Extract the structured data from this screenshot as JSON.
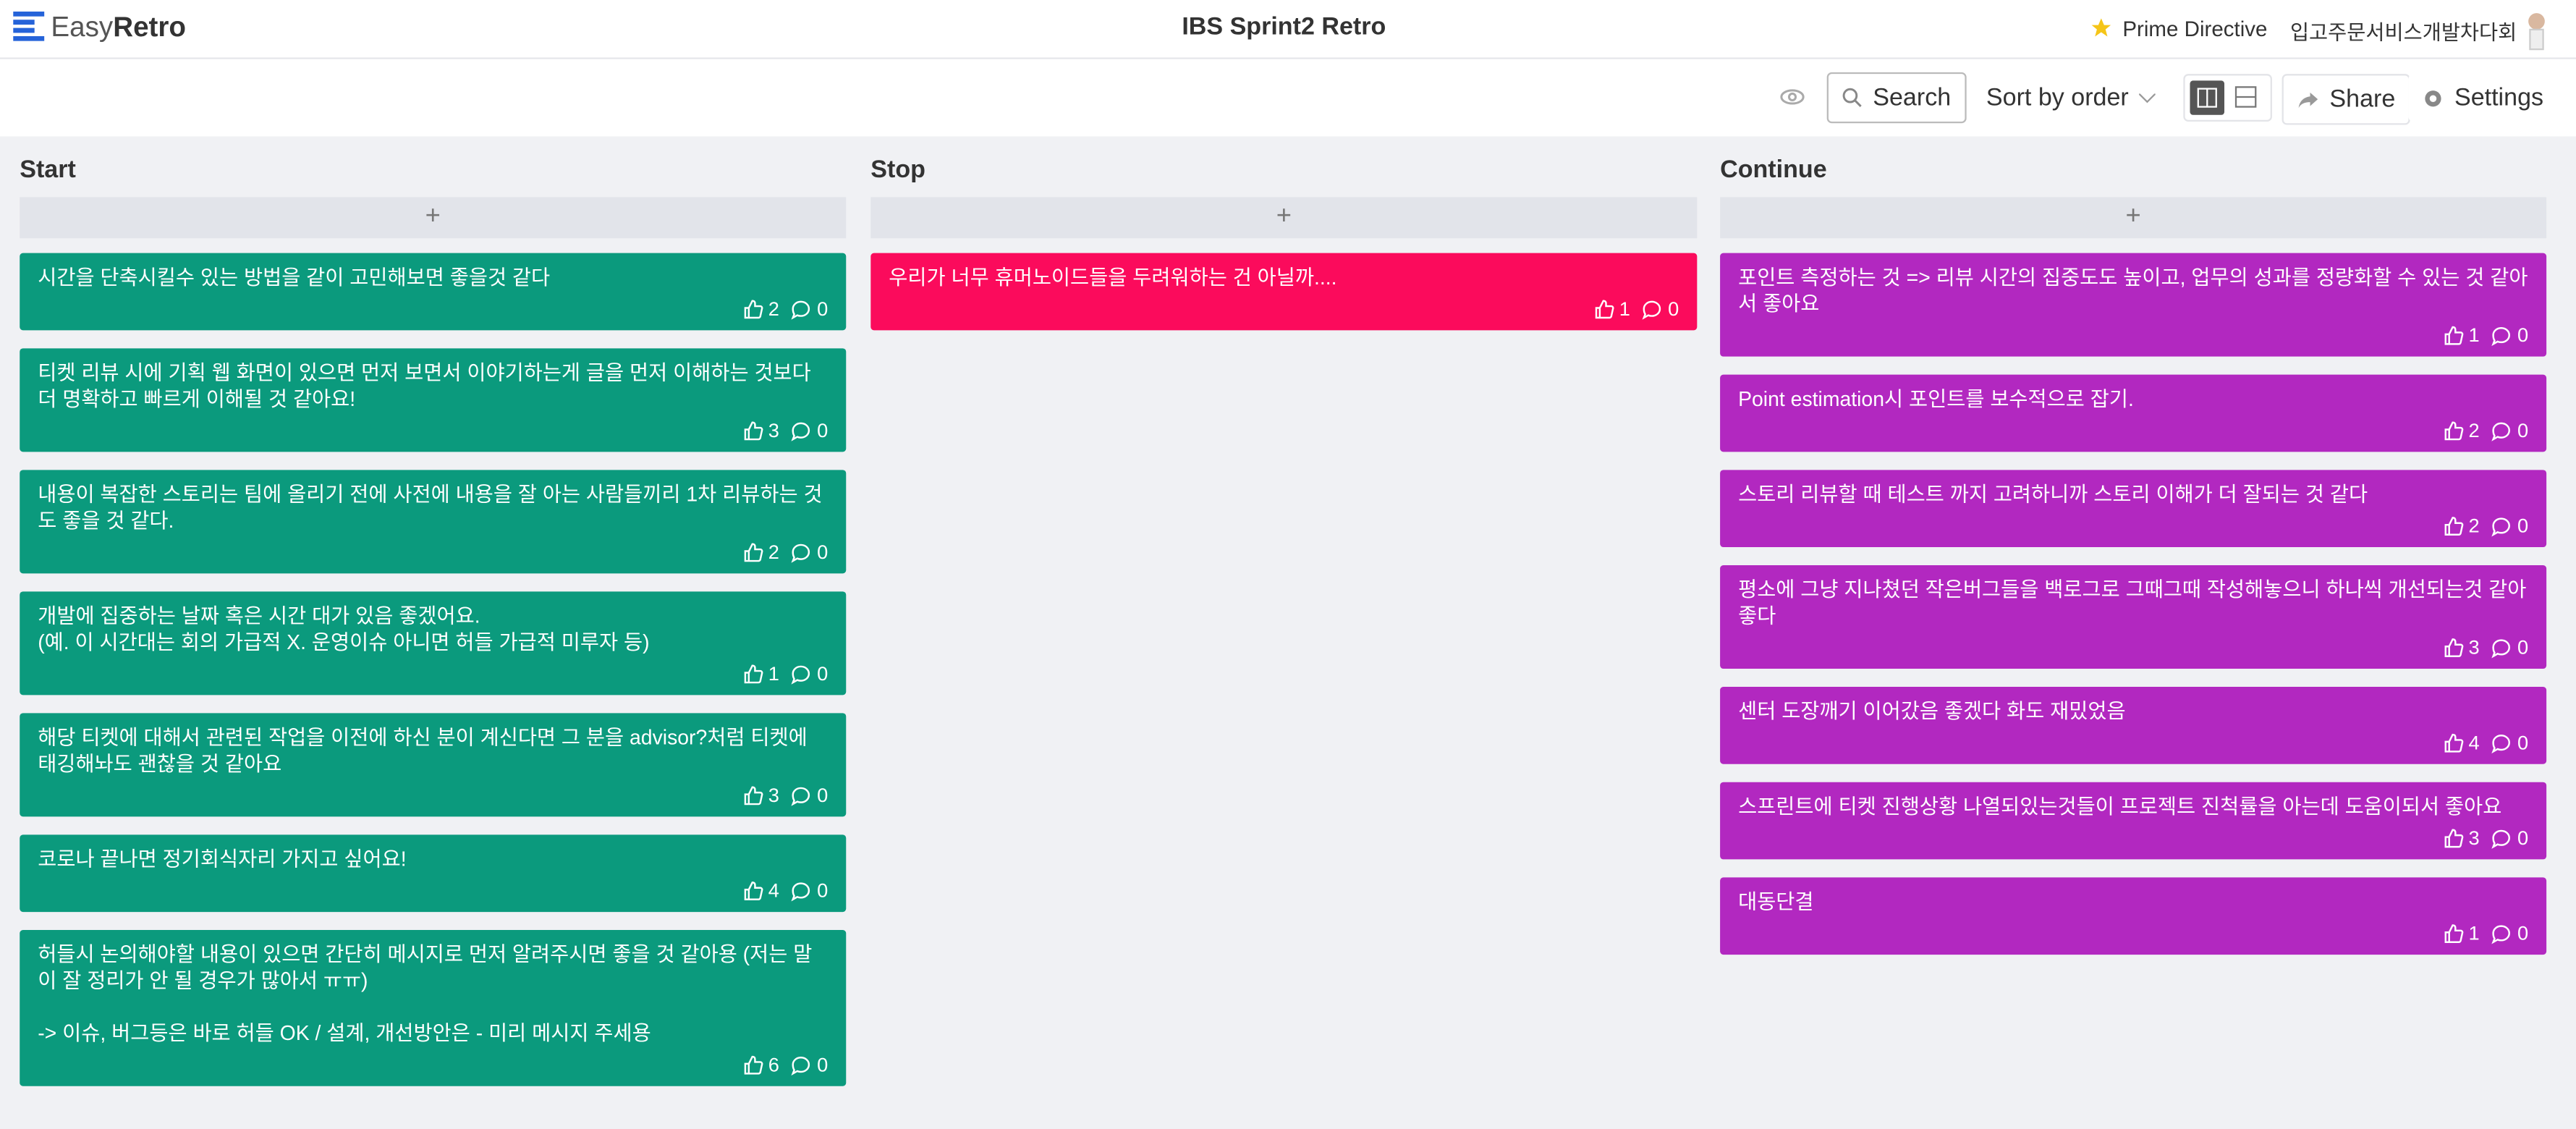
{
  "header": {
    "logo_easy": "Easy",
    "logo_retro": "Retro",
    "title": "IBS Sprint2 Retro",
    "prime_directive": "Prime Directive",
    "team": "입고주문서비스개발차다회"
  },
  "toolbar": {
    "search": "Search",
    "sort": "Sort by order",
    "share": "Share",
    "settings": "Settings"
  },
  "columns": [
    {
      "title": "Start",
      "color": "#0b9a7d",
      "cards": [
        {
          "text": "시간을 단축시킬수 있는 방법을 같이 고민해보면 좋을것 같다",
          "likes": "2",
          "comments": "0"
        },
        {
          "text": "티켓 리뷰 시에 기획 웹 화면이 있으면 먼저 보면서 이야기하는게 글을 먼저 이해하는 것보다 더 명확하고 빠르게 이해될 것 같아요!",
          "likes": "3",
          "comments": "0"
        },
        {
          "text": "내용이 복잡한 스토리는 팀에 올리기 전에 사전에 내용을 잘 아는 사람들끼리 1차 리뷰하는 것도 좋을 것 같다.",
          "likes": "2",
          "comments": "0"
        },
        {
          "text": "개발에 집중하는 날짜 혹은 시간 대가 있음 좋겠어요.\n(예. 이 시간대는 회의 가급적 X. 운영이슈 아니면 허들 가급적 미루자 등)",
          "likes": "1",
          "comments": "0"
        },
        {
          "text": "해당 티켓에 대해서 관련된 작업을 이전에 하신 분이 계신다면 그 분을 advisor?처럼 티켓에 태깅해놔도 괜찮을 것 같아요",
          "likes": "3",
          "comments": "0"
        },
        {
          "text": "코로나 끝나면 정기회식자리 가지고 싶어요!",
          "likes": "4",
          "comments": "0"
        },
        {
          "text": "허들시 논의해야할 내용이 있으면 간단히 메시지로 먼저 알려주시면 좋을 것 같아용 (저는 말이 잘 정리가 안 될 경우가 많아서 ㅠㅠ)\n\n-> 이슈, 버그등은 바로 허들 OK / 설계, 개선방안은 - 미리 메시지 주세용",
          "likes": "6",
          "comments": "0"
        }
      ]
    },
    {
      "title": "Stop",
      "color": "#fb0b5c",
      "cards": [
        {
          "text": "우리가 너무 휴머노이드들을 두려워하는 건 아닐까....",
          "likes": "1",
          "comments": "0"
        }
      ]
    },
    {
      "title": "Continue",
      "color": "#b228c0",
      "cards": [
        {
          "text": "포인트 측정하는 것 => 리뷰 시간의 집중도도 높이고, 업무의 성과를 정량화할 수 있는 것 같아서 좋아요",
          "likes": "1",
          "comments": "0"
        },
        {
          "text": "Point estimation시 포인트를 보수적으로 잡기.",
          "likes": "2",
          "comments": "0"
        },
        {
          "text": "스토리 리뷰할 때 테스트 까지 고려하니까 스토리 이해가 더 잘되는 것 같다",
          "likes": "2",
          "comments": "0"
        },
        {
          "text": "평소에 그냥 지나쳤던 작은버그들을 백로그로 그때그때 작성해놓으니 하나씩 개선되는것 같아 좋다",
          "likes": "3",
          "comments": "0"
        },
        {
          "text": "센터 도장깨기 이어갔음 좋겠다 화도 재밌었음",
          "likes": "4",
          "comments": "0"
        },
        {
          "text": "스프린트에 티켓 진행상황 나열되있는것들이 프로젝트 진척률을 아는데 도움이되서 좋아요",
          "likes": "3",
          "comments": "0"
        },
        {
          "text": "대동단결",
          "likes": "1",
          "comments": "0"
        }
      ]
    }
  ]
}
